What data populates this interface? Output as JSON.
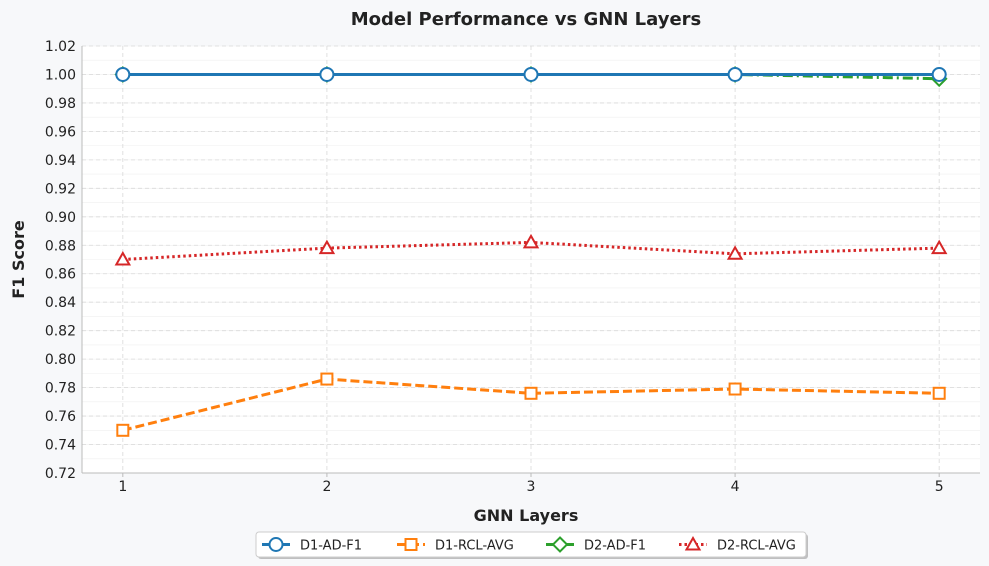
{
  "chart_data": {
    "type": "line",
    "title": "Model Performance vs GNN Layers",
    "xlabel": "GNN Layers",
    "ylabel": "F1 Score",
    "x": [
      1,
      2,
      3,
      4,
      5
    ],
    "xlim": [
      0.8,
      5.2
    ],
    "ylim": [
      0.72,
      1.02
    ],
    "yticks": [
      0.72,
      0.74,
      0.76,
      0.78,
      0.8,
      0.82,
      0.84,
      0.86,
      0.88,
      0.9,
      0.92,
      0.94,
      0.96,
      0.98,
      1.0,
      1.02
    ],
    "ytick_labels": [
      "0.72",
      "0.74",
      "0.76",
      "0.78",
      "0.80",
      "0.82",
      "0.84",
      "0.86",
      "0.88",
      "0.90",
      "0.92",
      "0.94",
      "0.96",
      "0.98",
      "1.00",
      "1.02"
    ],
    "xtick_labels": [
      "1",
      "2",
      "3",
      "4",
      "5"
    ],
    "grid": true,
    "legend_position": "bottom-center",
    "series": [
      {
        "name": "D1-AD-F1",
        "values": [
          1.0,
          1.0,
          1.0,
          1.0,
          1.0
        ],
        "color": "#1f77b4",
        "marker": "circle",
        "dash": "solid"
      },
      {
        "name": "D1-RCL-AVG",
        "values": [
          0.75,
          0.786,
          0.776,
          0.779,
          0.776
        ],
        "color": "#ff7f0e",
        "marker": "square",
        "dash": "dashed"
      },
      {
        "name": "D2-AD-F1",
        "values": [
          1.0,
          1.0,
          1.0,
          1.0,
          0.997
        ],
        "color": "#2ca02c",
        "marker": "diamond",
        "dash": "dashdot"
      },
      {
        "name": "D2-RCL-AVG",
        "values": [
          0.87,
          0.878,
          0.882,
          0.874,
          0.878
        ],
        "color": "#d62728",
        "marker": "triangle",
        "dash": "dotted"
      }
    ]
  }
}
